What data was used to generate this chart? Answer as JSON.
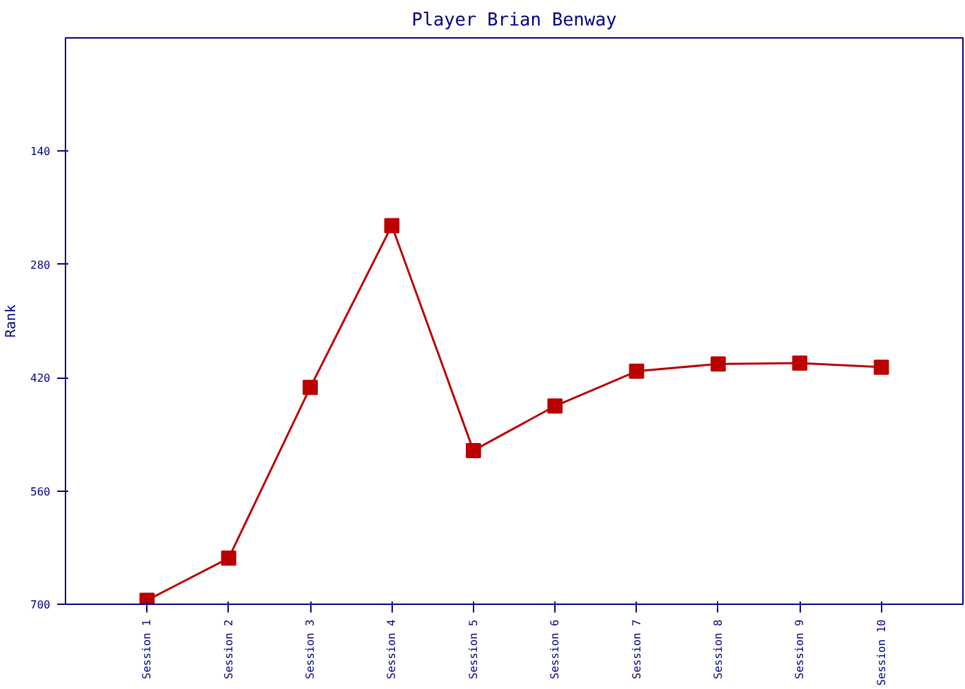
{
  "chart_data": {
    "type": "line",
    "title": "Player Brian Benway",
    "ylabel": "Rank",
    "categories": [
      "Session 1",
      "Session 2",
      "Session 3",
      "Session 4",
      "Session 5",
      "Session 6",
      "Session 7",
      "Session 8",
      "Session 9",
      "Session 10"
    ],
    "series": [
      {
        "color": "#bb0000",
        "values": [
          695,
          643,
          432,
          232,
          510,
          455,
          412,
          403,
          402,
          407
        ]
      }
    ],
    "ylim": [
      700,
      0
    ],
    "yticks": [
      140,
      280,
      420,
      560,
      700
    ],
    "grid": false,
    "marker": "square",
    "line_style": "solid"
  }
}
